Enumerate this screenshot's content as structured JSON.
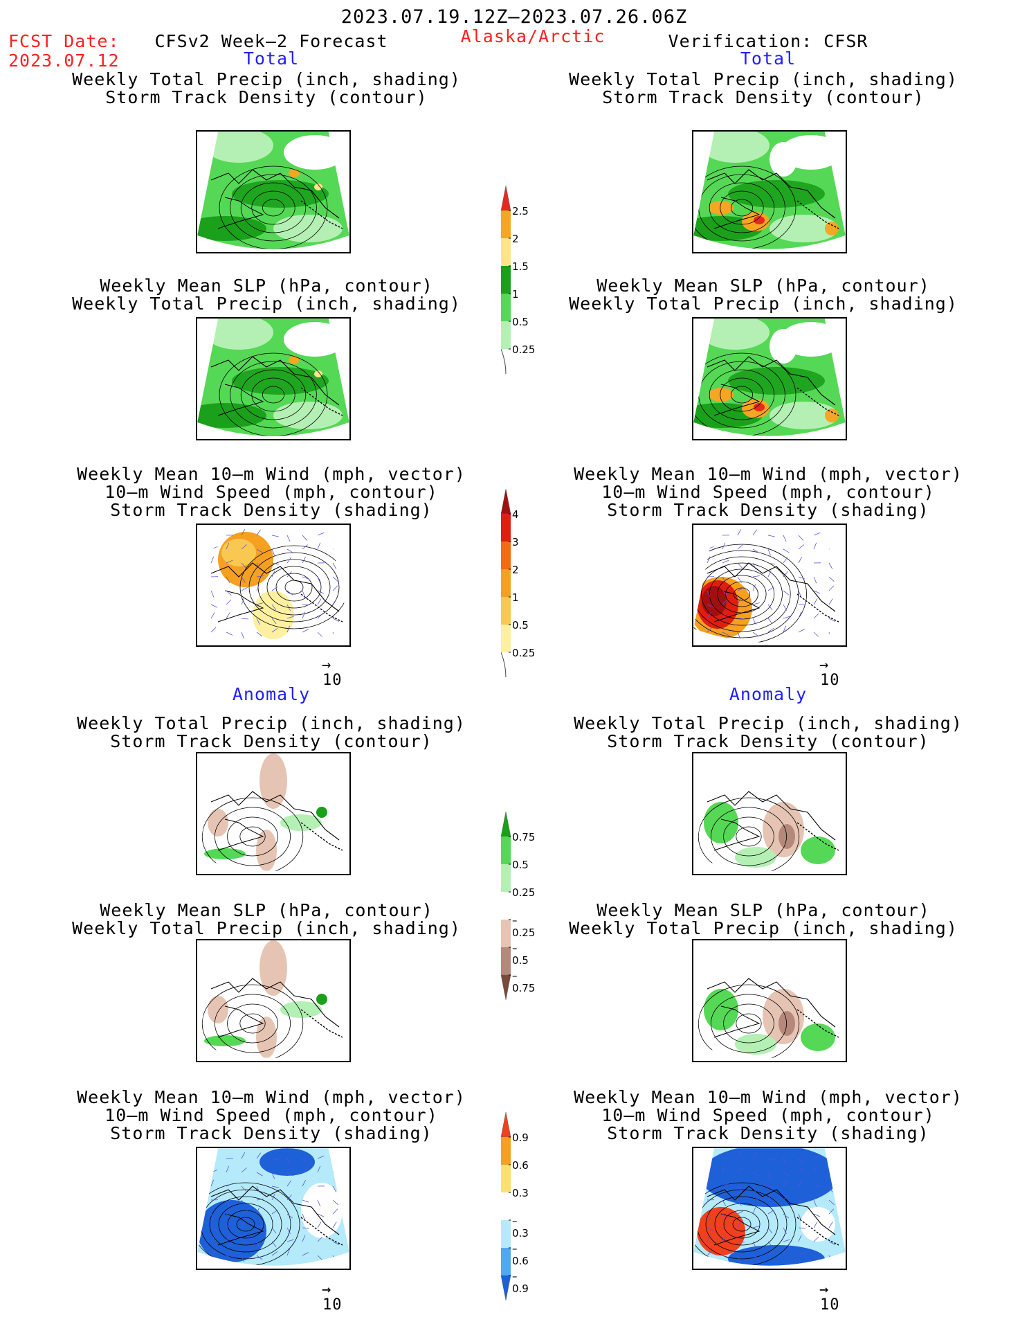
{
  "header": {
    "period": "2023.07.19.12Z–2023.07.26.06Z",
    "fcst_date_label": "FCST Date:",
    "fcst_date_value": "2023.07.12",
    "model_title": "CFSv2 Week–2 Forecast",
    "region": "Alaska/Arctic",
    "verification": "Verification: CFSR"
  },
  "sections": {
    "total": "Total",
    "anomaly": "Anomaly"
  },
  "panel_titles": {
    "precip_storm": [
      "Weekly Total Precip (inch, shading)",
      "Storm Track Density (contour)"
    ],
    "slp_precip": [
      "Weekly Mean SLP (hPa, contour)",
      "Weekly Total Precip (inch, shading)"
    ],
    "wind_storm": [
      "Weekly Mean 10–m Wind (mph, vector)",
      "10–m Wind Speed (mph, contour)",
      "Storm Track Density (shading)"
    ]
  },
  "vector_ref": "10",
  "colorbars": {
    "total_precip": {
      "labels": [
        "2.5",
        "2",
        "1.5",
        "1",
        "0.5",
        "0.25"
      ],
      "colors": [
        "#e8281e",
        "#f5a623",
        "#fde68a",
        "#1aa01a",
        "#55d855",
        "#b4f0b4"
      ]
    },
    "total_storm": {
      "labels": [
        "4",
        "3",
        "2",
        "1",
        "0.5",
        "0.25"
      ],
      "colors": [
        "#a01010",
        "#e01e10",
        "#f56a10",
        "#f5a020",
        "#f8c850",
        "#fdf0a0"
      ]
    },
    "anom_precip": {
      "labels": [
        "0.75",
        "0.5",
        "0.25",
        "–0.25",
        "–0.5",
        "–0.75"
      ],
      "colors": [
        "#1aa01a",
        "#55d855",
        "#b4f0b4",
        "#ffffff",
        "#e6c4b4",
        "#b4887a",
        "#784a3a"
      ]
    },
    "anom_storm": {
      "labels": [
        "0.9",
        "0.6",
        "0.3",
        "–0.3",
        "–0.6",
        "–0.9"
      ],
      "colors": [
        "#f0401e",
        "#f5a020",
        "#fde070",
        "#ffffff",
        "#b4eafa",
        "#50a8f0",
        "#1e60d8"
      ]
    }
  }
}
